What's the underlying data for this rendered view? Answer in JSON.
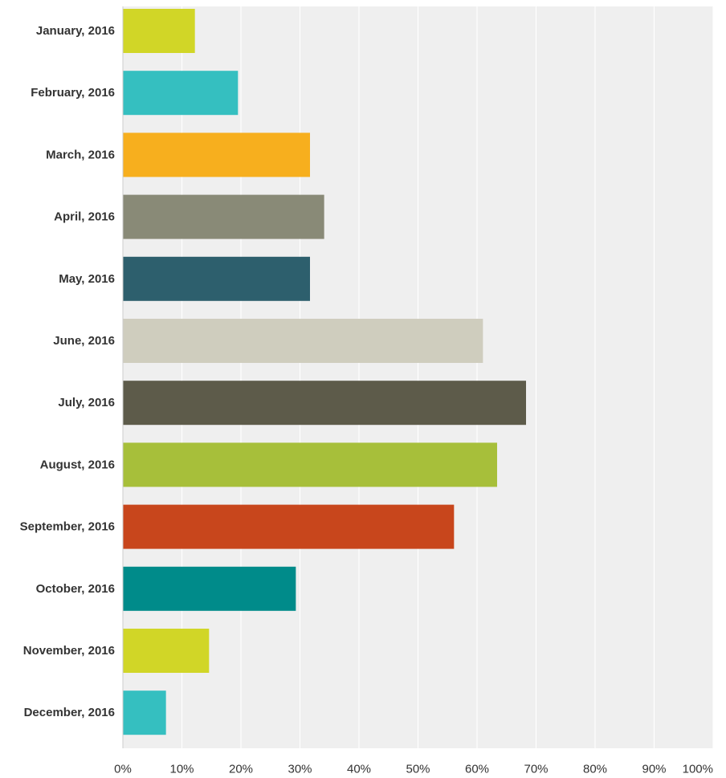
{
  "chart_data": {
    "type": "bar",
    "orientation": "horizontal",
    "categories": [
      "January, 2016",
      "February, 2016",
      "March, 2016",
      "April, 2016",
      "May, 2016",
      "June, 2016",
      "July, 2016",
      "August, 2016",
      "September, 2016",
      "October, 2016",
      "November, 2016",
      "December, 2016"
    ],
    "values": [
      12.2,
      19.5,
      31.7,
      34.1,
      31.7,
      61.0,
      68.3,
      63.4,
      56.1,
      29.3,
      14.6,
      7.3
    ],
    "colors": [
      "#d1d627",
      "#35bfc0",
      "#f7af1e",
      "#898a77",
      "#2d5f6d",
      "#cfcdbe",
      "#5d5b4a",
      "#a7bf3a",
      "#c8461c",
      "#008b8a",
      "#d1d627",
      "#35bfc0"
    ],
    "xlim": [
      0,
      100
    ],
    "x_ticks": [
      "0%",
      "10%",
      "20%",
      "30%",
      "40%",
      "50%",
      "60%",
      "70%",
      "80%",
      "90%",
      "100%"
    ],
    "grid": true,
    "legend": "none",
    "title": "",
    "xlabel": "",
    "ylabel": ""
  },
  "style": {
    "plot_background": "#efefef",
    "grid_color": "#ffffff",
    "axis_color": "#cccccc",
    "text_color": "#333333"
  }
}
